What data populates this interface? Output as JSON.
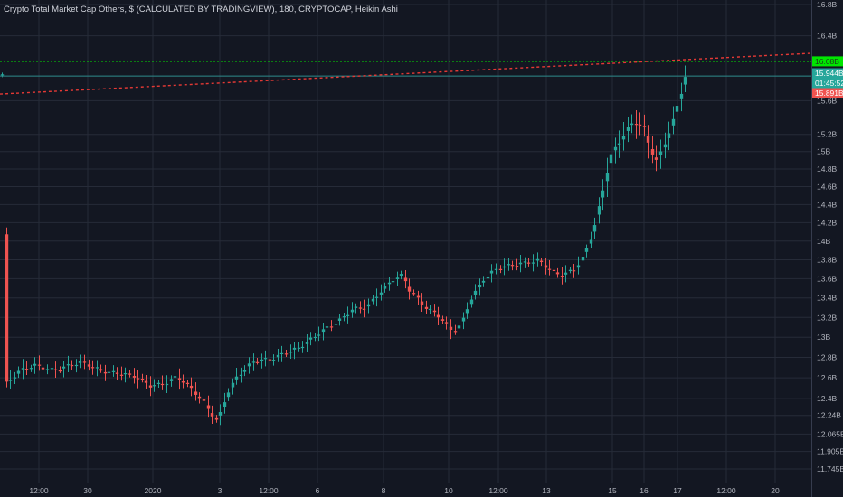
{
  "chart_data": {
    "type": "candlestick",
    "title": "Crypto Total Market Cap Others, $ (CALCULATED BY TRADINGVIEW), 180, CRYPTOCAP, Heikin Ashi",
    "y_scale": "log",
    "ylim": [
      "11.6B",
      "16.95B"
    ],
    "y_ticks": [
      "16.8B",
      "16.4B",
      "15.6B",
      "15.2B",
      "15B",
      "14.8B",
      "14.6B",
      "14.4B",
      "14.2B",
      "14B",
      "13.8B",
      "13.6B",
      "13.4B",
      "13.2B",
      "13B",
      "12.8B",
      "12.6B",
      "12.4B",
      "12.24B",
      "12.065B",
      "11.905B",
      "11.745B"
    ],
    "x_ticks": [
      "12:00",
      "30",
      "2020",
      "3",
      "12:00",
      "6",
      "8",
      "10",
      "12:00",
      "13",
      "15",
      "16",
      "17",
      "12:00",
      "20"
    ],
    "series": {
      "up_color": "#26a69a",
      "down_color": "#ef5350",
      "candles": []
    },
    "horizontal_lines": [
      {
        "value": "16.08B",
        "color": "#00e600",
        "style": "dotted"
      },
      {
        "value": "15.9B",
        "color": "#2e8b8b",
        "style": "solid"
      }
    ],
    "trend_line": {
      "from": "15.68B",
      "to": "16.18B",
      "color": "#e53935",
      "style": "dotted"
    },
    "price_tags": [
      {
        "label": "16.08B",
        "color": "#00e600",
        "text_color": "#1a3d1a"
      },
      {
        "label": "15.944B",
        "color": "#26a69a",
        "text_color": "#ffffff"
      },
      {
        "label": "01:45:52",
        "color": "#26a69a",
        "text_color": "#ffffff"
      },
      {
        "label": "15.891B",
        "color": "#ef5350",
        "text_color": "#ffffff"
      }
    ]
  }
}
